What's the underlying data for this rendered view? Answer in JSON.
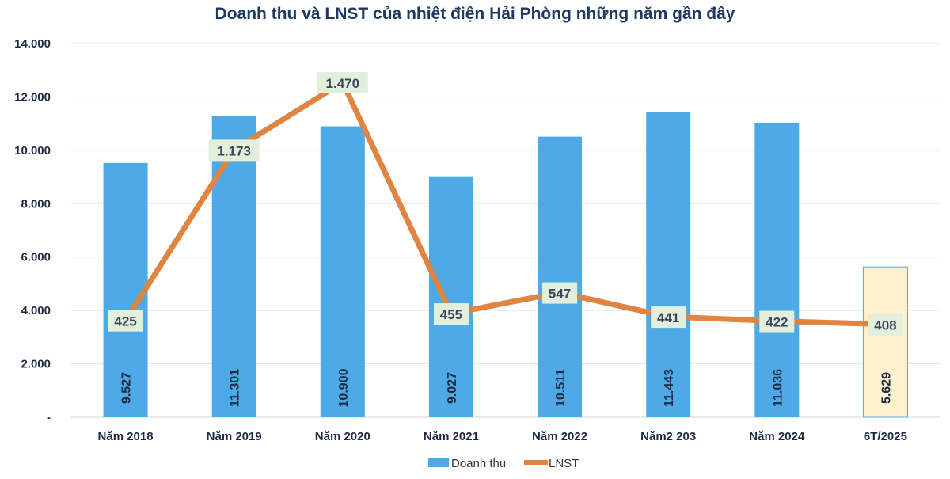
{
  "chart_data": {
    "type": "bar+line",
    "title": "Doanh thu và LNST của nhiệt điện Hải Phòng những năm gần đây",
    "categories": [
      "Năm 2018",
      "Năm 2019",
      "Năm 2020",
      "Năm 2021",
      "Năm 2022",
      "Năm2 203",
      "Năm 2024",
      "6T/2025"
    ],
    "series": [
      {
        "name": "Doanh thu",
        "type": "bar",
        "axis": "primary",
        "values": [
          9527,
          11301,
          10900,
          9027,
          10511,
          11443,
          11036,
          5629
        ],
        "labels": [
          "9.527",
          "11.301",
          "10.900",
          "9.027",
          "10.511",
          "11.443",
          "11.036",
          "5.629"
        ],
        "color": "#4eaae6",
        "highlight_last_color": "#fdf2cd"
      },
      {
        "name": "LNST",
        "type": "line",
        "axis": "secondary",
        "values": [
          425,
          1173,
          1470,
          455,
          547,
          441,
          422,
          408
        ],
        "labels": [
          "425",
          "1.173",
          "1.470",
          "455",
          "547",
          "441",
          "422",
          "408"
        ],
        "color": "#e08442",
        "label_bg": "#e3efda"
      }
    ],
    "ylim": [
      0,
      14000
    ],
    "yticks": [
      0,
      2000,
      4000,
      6000,
      8000,
      10000,
      12000,
      14000
    ],
    "ytick_labels": [
      "-",
      "2.000",
      "4.000",
      "6.000",
      "8.000",
      "10.000",
      "12.000",
      "14.000"
    ],
    "secondary_ylim": [
      0,
      1640
    ],
    "secondary_axis_visible": false,
    "grid": true,
    "legend": "bottom"
  }
}
